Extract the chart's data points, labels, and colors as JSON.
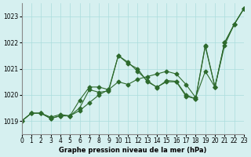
{
  "background_color": "#d6f0f0",
  "grid_color": "#aadddd",
  "line_color": "#2d6a2d",
  "title": "Graphe pression niveau de la mer (hPa)",
  "xlabel": "Graphe pression niveau de la mer (hPa)",
  "xlim": [
    0,
    23
  ],
  "ylim": [
    1018.5,
    1023.5
  ],
  "yticks": [
    1019,
    1020,
    1021,
    1022,
    1023
  ],
  "xticks": [
    0,
    1,
    2,
    3,
    4,
    5,
    6,
    7,
    8,
    9,
    10,
    11,
    12,
    13,
    14,
    15,
    16,
    17,
    18,
    19,
    20,
    21,
    22,
    23
  ],
  "series": [
    [
      1019.0,
      1019.3,
      1019.3,
      1019.1,
      1019.2,
      1019.2,
      1019.4,
      1019.7,
      1020.0,
      1020.2,
      1020.5,
      1020.4,
      1020.6,
      1020.7,
      1020.8,
      1020.9,
      1020.8,
      1020.4,
      1019.9,
      1020.9,
      1020.3,
      1021.9,
      1022.7,
      1023.3
    ],
    [
      1019.0,
      1019.3,
      1019.3,
      1019.1,
      1019.2,
      1019.2,
      1019.8,
      1020.3,
      1020.3,
      1020.2,
      1021.5,
      1021.2,
      1021.0,
      1020.5,
      1020.3,
      1020.5,
      1020.5,
      1019.95,
      1019.85,
      1021.9,
      1020.3,
      1022.0,
      1022.7,
      1023.3
    ],
    [
      1019.0,
      1019.3,
      1019.3,
      1019.15,
      1019.25,
      1019.2,
      1019.5,
      1020.2,
      1020.1,
      1020.15,
      1021.5,
      1021.25,
      1020.9,
      1020.55,
      1020.28,
      1020.55,
      1020.52,
      1020.0,
      1019.85,
      1021.85,
      1020.3,
      1022.0,
      1022.7,
      1023.3
    ]
  ]
}
